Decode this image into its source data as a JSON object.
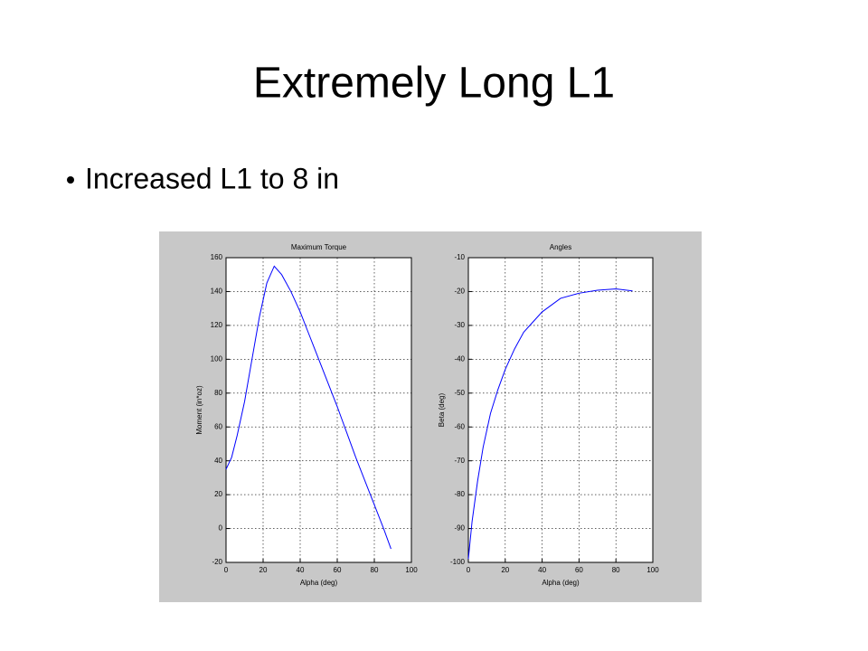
{
  "title": "Extremely Long L1",
  "bullets": [
    "Increased L1 to 8 in"
  ],
  "chart_data": [
    {
      "type": "line",
      "title": "Maximum Torque",
      "xlabel": "Alpha (deg)",
      "ylabel": "Moment (in*oz)",
      "x": [
        0,
        3,
        6,
        10,
        14,
        18,
        22,
        26,
        30,
        35,
        40,
        45,
        50,
        55,
        60,
        65,
        70,
        75,
        80,
        85,
        89
      ],
      "series": [
        {
          "color": "#0000ff",
          "values": [
            35,
            42,
            55,
            75,
            100,
            125,
            145,
            155,
            150,
            140,
            128,
            114,
            100,
            86,
            72,
            57,
            42,
            28,
            14,
            0,
            -12
          ]
        }
      ],
      "xlim": [
        0,
        100
      ],
      "xticks": [
        0,
        20,
        40,
        60,
        80,
        100
      ],
      "ylim": [
        -20,
        160
      ],
      "yticks": [
        -20,
        0,
        20,
        40,
        60,
        80,
        100,
        120,
        140,
        160
      ],
      "grid": true
    },
    {
      "type": "line",
      "title": "Angles",
      "xlabel": "Alpha (deg)",
      "ylabel": "Beta (deg)",
      "x": [
        0,
        2,
        5,
        8,
        12,
        16,
        20,
        25,
        30,
        35,
        40,
        50,
        60,
        70,
        80,
        89
      ],
      "series": [
        {
          "color": "#0000ff",
          "values": [
            -99,
            -88,
            -76,
            -66,
            -56,
            -49,
            -43,
            -37,
            -32,
            -29,
            -26,
            -22,
            -20.5,
            -19.6,
            -19.2,
            -19.8
          ]
        }
      ],
      "xlim": [
        0,
        100
      ],
      "xticks": [
        0,
        20,
        40,
        60,
        80,
        100
      ],
      "ylim": [
        -100,
        -10
      ],
      "yticks": [
        -100,
        -90,
        -80,
        -70,
        -60,
        -50,
        -40,
        -30,
        -20,
        -10
      ],
      "grid": true
    }
  ]
}
